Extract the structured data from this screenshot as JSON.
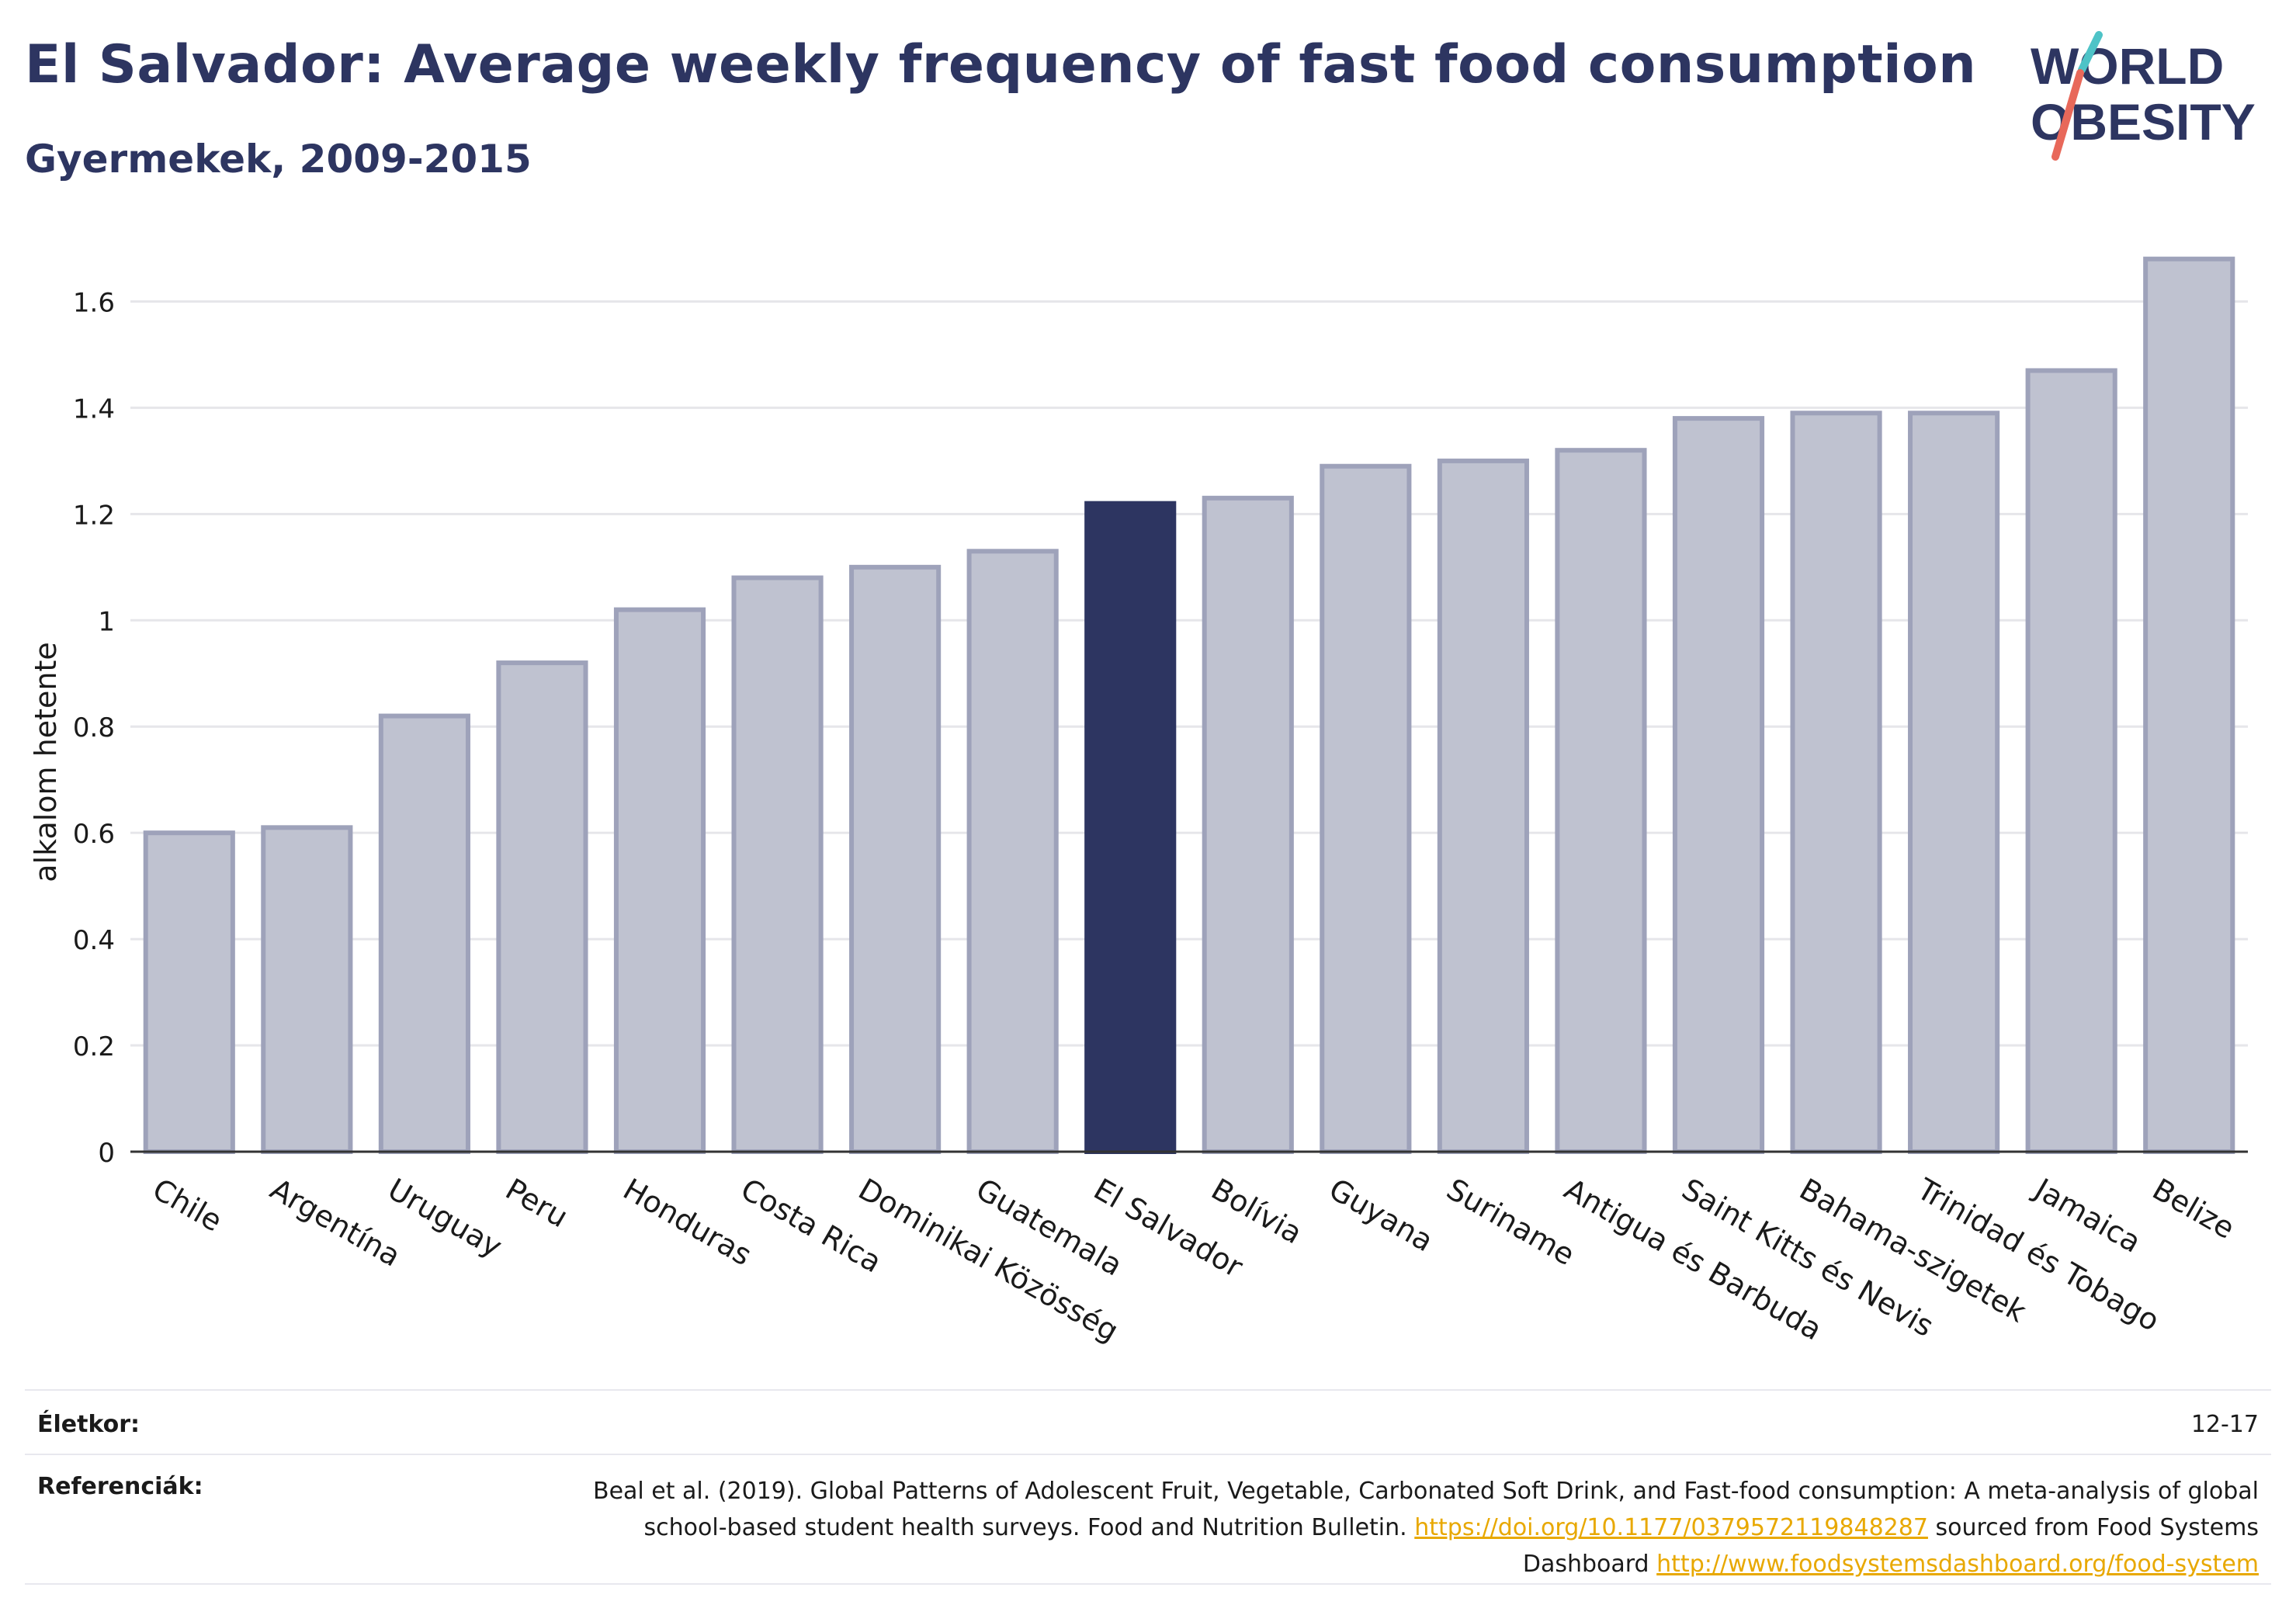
{
  "header": {
    "title": "El Salvador: Average weekly frequency of fast food consumption",
    "subtitle": "Gyermekek, 2009-2015"
  },
  "logo": {
    "line1": "WORLD",
    "line2": "OBESITY",
    "stroke_colors": [
      "#4ec3c7",
      "#e8685a"
    ]
  },
  "colors": {
    "bar": "#bfc2d0",
    "bar_stroke": "#9ea2ba",
    "highlight": "#2d3561",
    "axis": "#333333",
    "grid": "#e6e6ea",
    "link": "#e8a800"
  },
  "chart_data": {
    "type": "bar",
    "title": "",
    "xlabel": "",
    "ylabel": "alkalom hetente",
    "ylim": [
      0,
      1.7
    ],
    "yticks": [
      0,
      0.2,
      0.4,
      0.6,
      0.8,
      1,
      1.2,
      1.4,
      1.6
    ],
    "ytick_labels": [
      "0",
      "0.2",
      "0.4",
      "0.6",
      "0.8",
      "1",
      "1.2",
      "1.4",
      "1.6"
    ],
    "grid": true,
    "highlight": "El Salvador",
    "categories": [
      "Chile",
      "Argentína",
      "Uruguay",
      "Peru",
      "Honduras",
      "Costa Rica",
      "Dominikai Közösség",
      "Guatemala",
      "El Salvador",
      "Bolívia",
      "Guyana",
      "Suriname",
      "Antigua és Barbuda",
      "Saint Kitts és Nevis",
      "Bahama-szigetek",
      "Trinidad és Tobago",
      "Jamaica",
      "Belize"
    ],
    "values": [
      0.6,
      0.61,
      0.82,
      0.92,
      1.02,
      1.08,
      1.1,
      1.13,
      1.22,
      1.23,
      1.29,
      1.3,
      1.32,
      1.38,
      1.39,
      1.39,
      1.47,
      1.68
    ]
  },
  "footer": {
    "age_label": "Életkor:",
    "age_value": "12-17",
    "refs_label": "Referenciák:",
    "refs_text_1": "Beal et al. (2019). Global Patterns of Adolescent Fruit, Vegetable, Carbonated Soft Drink, and Fast-food consumption: A meta-analysis of global school-based student health surveys. Food and Nutrition Bulletin.",
    "refs_link_1": "https://doi.org/10.1177/0379572119848287",
    "refs_text_2": "sourced from Food Systems Dashboard",
    "refs_link_2": "http://www.foodsystemsdashboard.org/food-system"
  }
}
